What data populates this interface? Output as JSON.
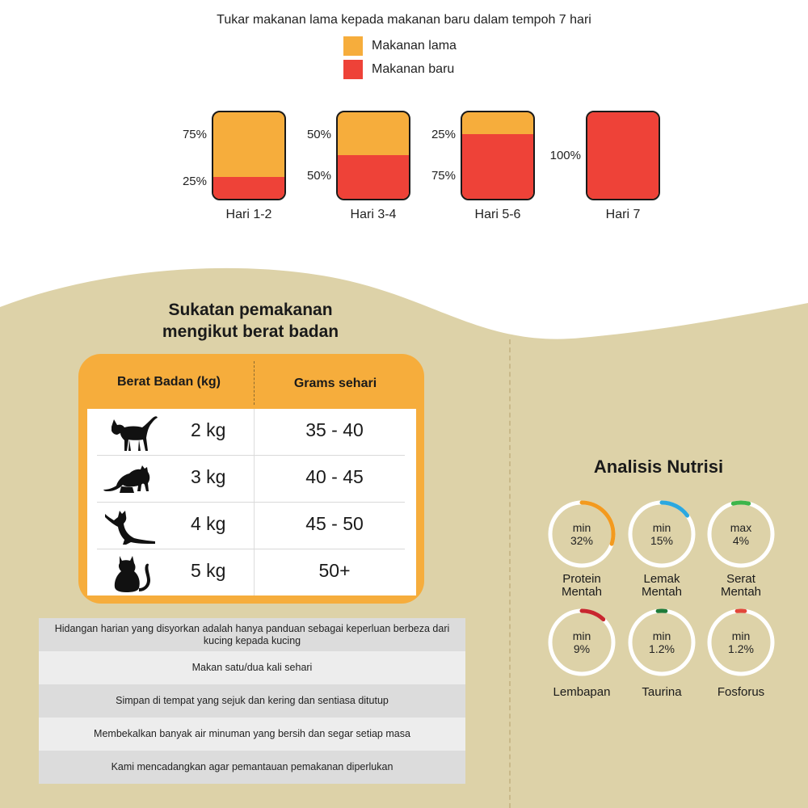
{
  "transition": {
    "title": "Tukar makanan lama kepada makanan baru dalam tempoh 7 hari",
    "legend": [
      {
        "label": "Makanan lama",
        "color": "#f6ad3c"
      },
      {
        "label": "Makanan baru",
        "color": "#ee4238"
      }
    ],
    "stages": [
      {
        "day": "Hari 1-2",
        "old_label": "75%",
        "new_label": "25%",
        "new_fraction": 0.25
      },
      {
        "day": "Hari 3-4",
        "old_label": "50%",
        "new_label": "50%",
        "new_fraction": 0.5
      },
      {
        "day": "Hari 5-6",
        "old_label": "25%",
        "new_label": "75%",
        "new_fraction": 0.75
      },
      {
        "day": "Hari 7",
        "single_label": "100%",
        "new_fraction": 1.0
      }
    ]
  },
  "feeding": {
    "title_line1": "Sukatan pemakanan",
    "title_line2": "mengikut berat badan",
    "col_weight": "Berat Badan (kg)",
    "col_grams": "Grams sehari",
    "rows": [
      {
        "icon": "standing-cat-icon",
        "weight": "2 kg",
        "grams": "35 - 40"
      },
      {
        "icon": "grooming-cat-icon",
        "weight": "3 kg",
        "grams": "40 - 45"
      },
      {
        "icon": "stretching-cat-icon",
        "weight": "4 kg",
        "grams": "45 - 50"
      },
      {
        "icon": "sitting-cat-icon",
        "weight": "5 kg",
        "grams": "50+"
      }
    ]
  },
  "notes": [
    "Hidangan harian yang disyorkan adalah hanya panduan sebagai keperluan berbeza dari kucing kepada kucing",
    "Makan satu/dua kali sehari",
    "Simpan di tempat yang sejuk dan kering dan sentiasa ditutup",
    "Membekalkan banyak air minuman yang bersih dan segar setiap masa",
    "Kami mencadangkan agar pemantauan pemakanan diperlukan"
  ],
  "nutrition": {
    "title": "Analisis Nutrisi",
    "items": [
      {
        "qualifier": "min",
        "value": "32%",
        "label_line1": "Protein",
        "label_line2": "Mentah",
        "color": "#f39a1e",
        "arc_fraction": 0.3
      },
      {
        "qualifier": "min",
        "value": "15%",
        "label_line1": "Lemak",
        "label_line2": "Mentah",
        "color": "#2ba8e0",
        "arc_fraction": 0.15
      },
      {
        "qualifier": "max",
        "value": "4%",
        "label_line1": "Serat",
        "label_line2": "Mentah",
        "color": "#3cb54a",
        "arc_fraction": 0.08
      },
      {
        "qualifier": "min",
        "value": "9%",
        "label_line1": "Lembapan",
        "label_line2": "",
        "color": "#c8262e",
        "arc_fraction": 0.12
      },
      {
        "qualifier": "min",
        "value": "1.2%",
        "label_line1": "Taurina",
        "label_line2": "",
        "color": "#1e7b3a",
        "arc_fraction": 0.04
      },
      {
        "qualifier": "min",
        "value": "1.2%",
        "label_line1": "Fosforus",
        "label_line2": "",
        "color": "#e2473a",
        "arc_fraction": 0.04
      }
    ]
  },
  "colors": {
    "background_beige": "#ddd2a8",
    "old_food": "#f6ad3c",
    "new_food": "#ee4238"
  }
}
